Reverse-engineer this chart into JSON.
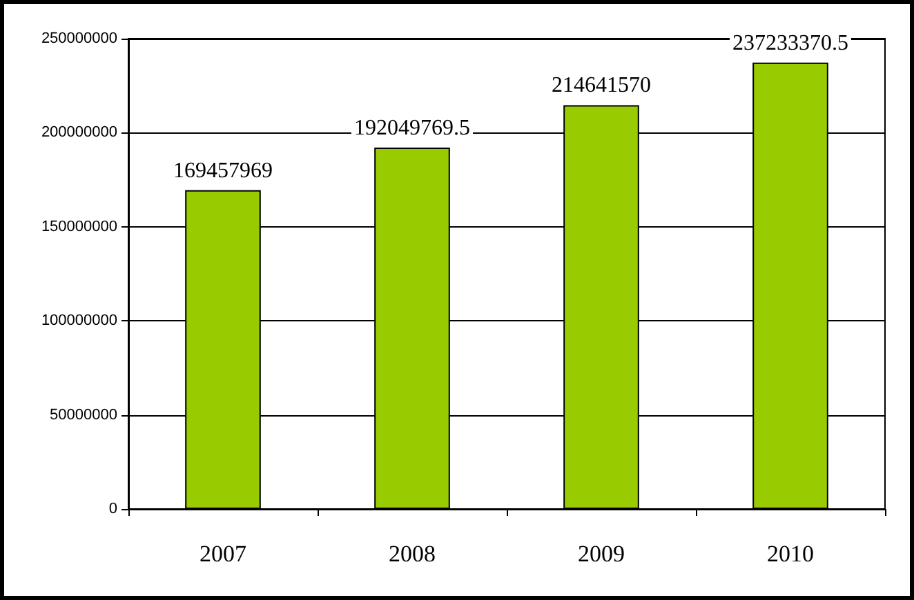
{
  "chart_data": {
    "type": "bar",
    "categories": [
      "2007",
      "2008",
      "2009",
      "2010"
    ],
    "series": [
      {
        "color": "#99cc00",
        "values": [
          169457969,
          192049769.5,
          214641570,
          237233370.5
        ]
      }
    ],
    "ylim": [
      0,
      250000000
    ],
    "yticks": [
      0,
      50000000,
      100000000,
      150000000,
      200000000,
      250000000
    ],
    "grid": "y",
    "data_labels": true
  }
}
